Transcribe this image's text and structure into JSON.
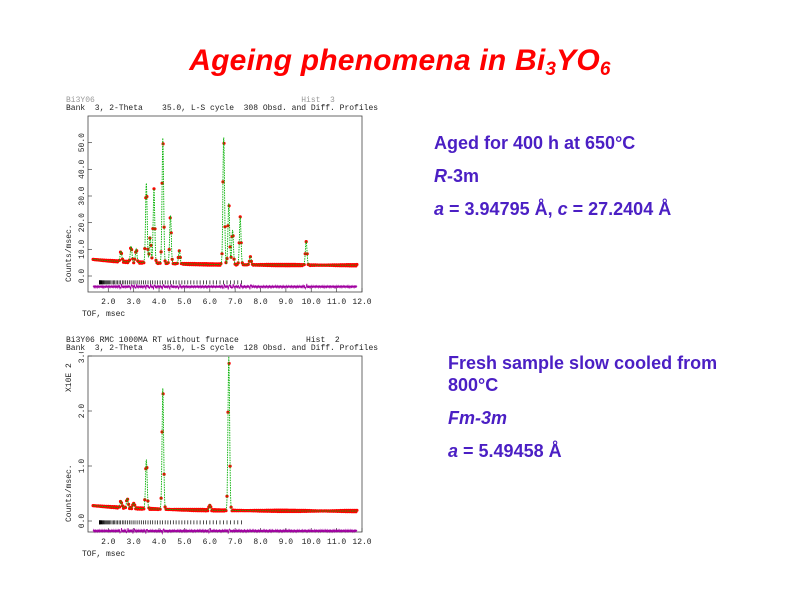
{
  "slide": {
    "title_main": "Ageing phenomena in Bi",
    "title_sub1": "3",
    "title_mid": "YO",
    "title_sub2": "6"
  },
  "aged": {
    "line1": "Aged for  400 h at 650°C",
    "space_group_italic": "R",
    "space_group_rest": "-3m",
    "lattice_a_label": "a",
    "lattice_a_value": " = 3.94795 Å, ",
    "lattice_c_label": "c",
    "lattice_c_value": " = 27.2404 Å"
  },
  "fresh": {
    "line1": "Fresh sample slow cooled from",
    "line1b": "800°C",
    "space_group_italic": "Fm",
    "space_group_rest": "-3m",
    "lattice_a_label": "a",
    "lattice_a_value": " = 5.49458 Å"
  },
  "chart_data": [
    {
      "type": "line",
      "header_top": "Bi3Y06                                           Hist  3",
      "header": "Bank  3, 2-Theta    35.0, L-S cycle  308 Obsd. and Diff. Profiles",
      "xlabel": "TOF, msec",
      "ylabel": "Counts/msec.",
      "xlim": [
        1.2,
        12.0
      ],
      "ylim": [
        -6,
        60
      ],
      "x_ticks": [
        "2.0",
        "3.0",
        "4.0",
        "5.0",
        "6.0",
        "7.0",
        "8.0",
        "9.0",
        "10.0",
        "11.0",
        "12.0"
      ],
      "y_ticks": [
        "0.0",
        "10.0",
        "20.0",
        "30.0",
        "40.0",
        "50.0"
      ],
      "background": 4,
      "peaks": [
        {
          "x": 2.5,
          "h": 4
        },
        {
          "x": 2.9,
          "h": 6
        },
        {
          "x": 3.1,
          "h": 5
        },
        {
          "x": 3.5,
          "h": 30
        },
        {
          "x": 3.65,
          "h": 10
        },
        {
          "x": 3.8,
          "h": 28
        },
        {
          "x": 4.15,
          "h": 47
        },
        {
          "x": 4.45,
          "h": 18
        },
        {
          "x": 4.8,
          "h": 5
        },
        {
          "x": 6.55,
          "h": 48
        },
        {
          "x": 6.75,
          "h": 23
        },
        {
          "x": 6.9,
          "h": 13
        },
        {
          "x": 7.2,
          "h": 18
        },
        {
          "x": 7.6,
          "h": 3
        },
        {
          "x": 9.8,
          "h": 9
        }
      ],
      "diff_offset": -4,
      "series": [
        {
          "name": "",
          "color": "#ff0000"
        },
        {
          "name": "",
          "color": "#00b000"
        },
        {
          "name": "",
          "color": "#a000a0"
        }
      ]
    },
    {
      "type": "line",
      "header_top": "Bi3Y06 RMC 1000MA RT without furnace              Hist  2",
      "header": "Bank  3, 2-Theta    35.0, L-S cycle  128 Obsd. and Diff. Profiles",
      "xlabel": "TOF, msec",
      "ylabel": "Counts/msec.",
      "scale_label": "X10E  2",
      "xlim": [
        1.2,
        12.0
      ],
      "ylim": [
        -0.2,
        3.0
      ],
      "x_ticks": [
        "2.0",
        "3.0",
        "4.0",
        "5.0",
        "6.0",
        "7.0",
        "8.0",
        "9.0",
        "10.0",
        "11.0",
        "12.0"
      ],
      "y_ticks": [
        "0.0",
        "1.0",
        "2.0",
        "3.0"
      ],
      "background": 0.18,
      "peaks": [
        {
          "x": 2.5,
          "h": 0.12
        },
        {
          "x": 2.75,
          "h": 0.18
        },
        {
          "x": 3.0,
          "h": 0.1
        },
        {
          "x": 3.5,
          "h": 0.9
        },
        {
          "x": 4.15,
          "h": 2.2
        },
        {
          "x": 6.0,
          "h": 0.1
        },
        {
          "x": 6.75,
          "h": 2.8
        }
      ],
      "diff_offset": -0.18,
      "series": [
        {
          "name": "",
          "color": "#ff0000"
        },
        {
          "name": "",
          "color": "#00b000"
        },
        {
          "name": "",
          "color": "#a000a0"
        }
      ]
    }
  ]
}
